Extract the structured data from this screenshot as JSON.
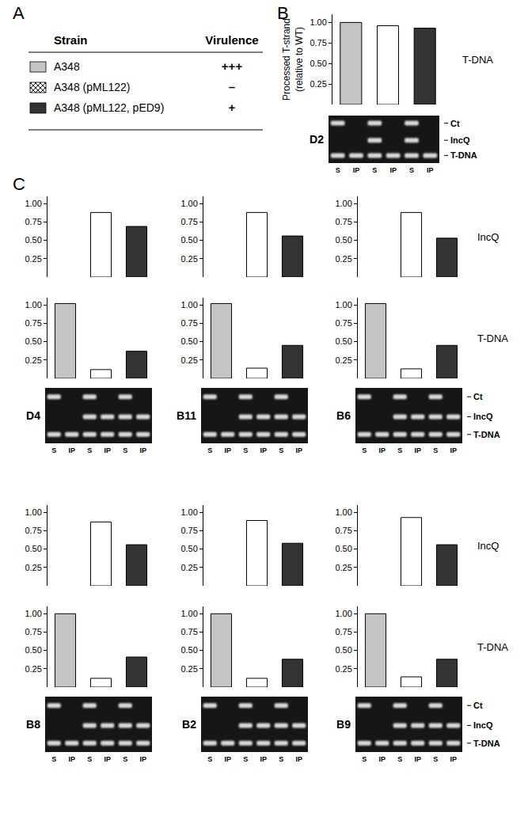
{
  "panel_labels": [
    "A",
    "B",
    "C"
  ],
  "table": {
    "header": [
      "Strain",
      "Virulence"
    ],
    "rows": [
      {
        "strain": "A348",
        "virulence": "+++",
        "color": "#c4c4c4"
      },
      {
        "strain": "A348 (pML122)",
        "virulence": "–",
        "color": "#ffffff",
        "marker": "x"
      },
      {
        "strain": "A348 (pML122, pED9)",
        "virulence": "+",
        "color": "#333333"
      }
    ]
  },
  "gel_lanes": [
    "S",
    "IP",
    "S",
    "IP",
    "S",
    "IP"
  ],
  "band_labels": [
    "Ct",
    "IncQ",
    "T-DNA"
  ],
  "gels": [
    {
      "label": "D2",
      "bands": [
        [
          true,
          false,
          true,
          false,
          true,
          false
        ],
        [
          false,
          false,
          true,
          false,
          true,
          false
        ],
        [
          true,
          true,
          true,
          true,
          true,
          true
        ]
      ]
    },
    {
      "label": "D4",
      "bands": [
        [
          true,
          false,
          true,
          false,
          true,
          false
        ],
        [
          false,
          false,
          true,
          true,
          true,
          true
        ],
        [
          true,
          true,
          true,
          true,
          true,
          true
        ]
      ]
    },
    {
      "label": "B11",
      "bands": [
        [
          true,
          false,
          true,
          false,
          true,
          false
        ],
        [
          false,
          false,
          true,
          true,
          true,
          true
        ],
        [
          true,
          true,
          true,
          true,
          true,
          true
        ]
      ]
    },
    {
      "label": "B6",
      "bands": [
        [
          true,
          false,
          true,
          false,
          true,
          false
        ],
        [
          false,
          false,
          true,
          true,
          true,
          true
        ],
        [
          true,
          true,
          true,
          true,
          true,
          true
        ]
      ]
    },
    {
      "label": "B8",
      "bands": [
        [
          true,
          false,
          true,
          false,
          true,
          false
        ],
        [
          false,
          false,
          true,
          true,
          true,
          true
        ],
        [
          true,
          true,
          true,
          true,
          true,
          true
        ]
      ]
    },
    {
      "label": "B2",
      "bands": [
        [
          true,
          false,
          true,
          false,
          true,
          false
        ],
        [
          false,
          false,
          true,
          true,
          true,
          true
        ],
        [
          true,
          true,
          true,
          true,
          true,
          true
        ]
      ]
    },
    {
      "label": "B9",
      "bands": [
        [
          true,
          false,
          true,
          false,
          true,
          false
        ],
        [
          false,
          false,
          true,
          true,
          true,
          true
        ],
        [
          true,
          true,
          true,
          true,
          true,
          true
        ]
      ]
    }
  ],
  "chart_data": [
    {
      "type": "bar",
      "title": "T-DNA",
      "ylabel": "Processed T-strand\n(relative to WT)",
      "categories": [
        null,
        null,
        null
      ],
      "values": [
        1.0,
        0.96,
        0.93
      ],
      "ylim": [
        0,
        1.1
      ],
      "yticks": [
        {
          "value": 0.25,
          "label": "0.25"
        },
        {
          "value": 0.5,
          "label": "0.50"
        },
        {
          "value": 0.75,
          "label": "0.75"
        },
        {
          "value": 1.0,
          "label": "1.00"
        }
      ],
      "grid": false
    },
    {
      "type": "bar",
      "categories": [
        null,
        null,
        null
      ],
      "values": [
        null,
        0.88,
        0.69
      ],
      "ylim": [
        0,
        1.1
      ],
      "yticks": [
        {
          "value": 0.25,
          "label": "0.25"
        },
        {
          "value": 0.5,
          "label": "0.50"
        },
        {
          "value": 0.75,
          "label": "0.75"
        },
        {
          "value": 1.0,
          "label": "1.00"
        }
      ],
      "grid": false
    },
    {
      "type": "bar",
      "categories": [
        null,
        null,
        null
      ],
      "values": [
        null,
        0.88,
        0.56
      ],
      "ylim": [
        0,
        1.1
      ],
      "yticks": [
        {
          "value": 0.25,
          "label": "0.25"
        },
        {
          "value": 0.5,
          "label": "0.50"
        },
        {
          "value": 0.75,
          "label": "0.75"
        },
        {
          "value": 1.0,
          "label": "1.00"
        }
      ],
      "grid": false
    },
    {
      "type": "bar",
      "title": "IncQ",
      "categories": [
        null,
        null,
        null
      ],
      "values": [
        null,
        0.88,
        0.53
      ],
      "ylim": [
        0,
        1.1
      ],
      "yticks": [
        {
          "value": 0.25,
          "label": "0.25"
        },
        {
          "value": 0.5,
          "label": "0.50"
        },
        {
          "value": 0.75,
          "label": "0.75"
        },
        {
          "value": 1.0,
          "label": "1.00"
        }
      ],
      "grid": false
    },
    {
      "type": "bar",
      "categories": [
        null,
        null,
        null
      ],
      "values": [
        1.02,
        0.12,
        0.37
      ],
      "ylim": [
        0,
        1.1
      ],
      "yticks": [
        {
          "value": 0.25,
          "label": "0.25"
        },
        {
          "value": 0.5,
          "label": "0.50"
        },
        {
          "value": 0.75,
          "label": "0.75"
        },
        {
          "value": 1.0,
          "label": "1.00"
        }
      ],
      "grid": false
    },
    {
      "type": "bar",
      "categories": [
        null,
        null,
        null
      ],
      "values": [
        1.02,
        0.14,
        0.45
      ],
      "ylim": [
        0,
        1.1
      ],
      "yticks": [
        {
          "value": 0.25,
          "label": "0.25"
        },
        {
          "value": 0.5,
          "label": "0.50"
        },
        {
          "value": 0.75,
          "label": "0.75"
        },
        {
          "value": 1.0,
          "label": "1.00"
        }
      ],
      "grid": false
    },
    {
      "type": "bar",
      "title": "T-DNA",
      "categories": [
        null,
        null,
        null
      ],
      "values": [
        1.02,
        0.13,
        0.45
      ],
      "ylim": [
        0,
        1.1
      ],
      "yticks": [
        {
          "value": 0.25,
          "label": "0.25"
        },
        {
          "value": 0.5,
          "label": "0.50"
        },
        {
          "value": 0.75,
          "label": "0.75"
        },
        {
          "value": 1.0,
          "label": "1.00"
        }
      ],
      "grid": false
    },
    {
      "type": "bar",
      "categories": [
        null,
        null,
        null
      ],
      "values": [
        null,
        0.87,
        0.56
      ],
      "ylim": [
        0,
        1.1
      ],
      "yticks": [
        {
          "value": 0.25,
          "label": "0.25"
        },
        {
          "value": 0.5,
          "label": "0.50"
        },
        {
          "value": 0.75,
          "label": "0.75"
        },
        {
          "value": 1.0,
          "label": "1.00"
        }
      ],
      "grid": false
    },
    {
      "type": "bar",
      "categories": [
        null,
        null,
        null
      ],
      "values": [
        null,
        0.89,
        0.58
      ],
      "ylim": [
        0,
        1.1
      ],
      "yticks": [
        {
          "value": 0.25,
          "label": "0.25"
        },
        {
          "value": 0.5,
          "label": "0.50"
        },
        {
          "value": 0.75,
          "label": "0.75"
        },
        {
          "value": 1.0,
          "label": "1.00"
        }
      ],
      "grid": false
    },
    {
      "type": "bar",
      "title": "IncQ",
      "categories": [
        null,
        null,
        null
      ],
      "values": [
        null,
        0.93,
        0.56
      ],
      "ylim": [
        0,
        1.1
      ],
      "yticks": [
        {
          "value": 0.25,
          "label": "0.25"
        },
        {
          "value": 0.5,
          "label": "0.50"
        },
        {
          "value": 0.75,
          "label": "0.75"
        },
        {
          "value": 1.0,
          "label": "1.00"
        }
      ],
      "grid": false
    },
    {
      "type": "bar",
      "categories": [
        null,
        null,
        null
      ],
      "values": [
        1.0,
        0.12,
        0.41
      ],
      "ylim": [
        0,
        1.1
      ],
      "yticks": [
        {
          "value": 0.25,
          "label": "0.25"
        },
        {
          "value": 0.5,
          "label": "0.50"
        },
        {
          "value": 0.75,
          "label": "0.75"
        },
        {
          "value": 1.0,
          "label": "1.00"
        }
      ],
      "grid": false
    },
    {
      "type": "bar",
      "categories": [
        null,
        null,
        null
      ],
      "values": [
        1.0,
        0.12,
        0.38
      ],
      "ylim": [
        0,
        1.1
      ],
      "yticks": [
        {
          "value": 0.25,
          "label": "0.25"
        },
        {
          "value": 0.5,
          "label": "0.50"
        },
        {
          "value": 0.75,
          "label": "0.75"
        },
        {
          "value": 1.0,
          "label": "1.00"
        }
      ],
      "grid": false
    },
    {
      "type": "bar",
      "title": "T-DNA",
      "categories": [
        null,
        null,
        null
      ],
      "values": [
        1.0,
        0.14,
        0.38
      ],
      "ylim": [
        0,
        1.1
      ],
      "yticks": [
        {
          "value": 0.25,
          "label": "0.25"
        },
        {
          "value": 0.5,
          "label": "0.50"
        },
        {
          "value": 0.75,
          "label": "0.75"
        },
        {
          "value": 1.0,
          "label": "1.00"
        }
      ],
      "grid": false
    }
  ]
}
